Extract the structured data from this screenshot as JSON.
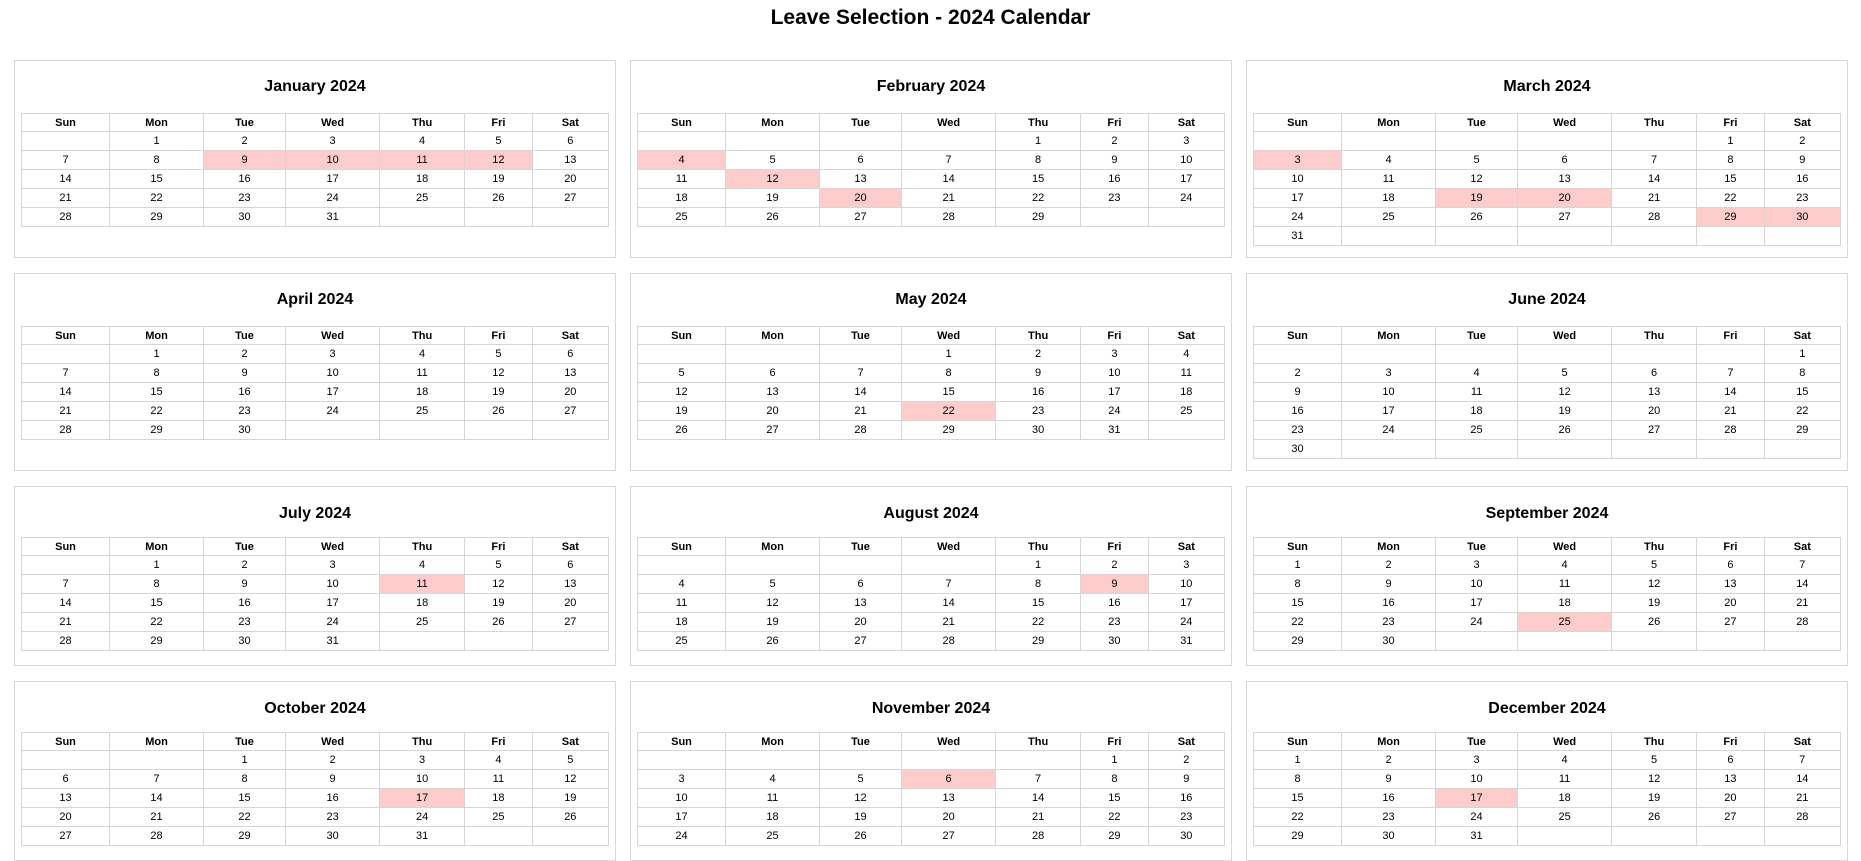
{
  "page": {
    "title": "Leave Selection - 2024 Calendar"
  },
  "weekdays": [
    "Sun",
    "Mon",
    "Tue",
    "Wed",
    "Thu",
    "Fri",
    "Sat"
  ],
  "highlight_color": "#ffcccc",
  "months": [
    {
      "title": "January 2024",
      "offset": 1,
      "days": 31,
      "leave": [
        9,
        10,
        11,
        12
      ]
    },
    {
      "title": "February 2024",
      "offset": 4,
      "days": 29,
      "leave": [
        4,
        12,
        20
      ]
    },
    {
      "title": "March 2024",
      "offset": 5,
      "days": 31,
      "leave": [
        3,
        19,
        20,
        29,
        30
      ]
    },
    {
      "title": "April 2024",
      "offset": 1,
      "days": 30,
      "leave": []
    },
    {
      "title": "May 2024",
      "offset": 3,
      "days": 31,
      "leave": [
        22
      ]
    },
    {
      "title": "June 2024",
      "offset": 6,
      "days": 30,
      "leave": []
    },
    {
      "title": "July 2024",
      "offset": 1,
      "days": 31,
      "leave": [
        11
      ]
    },
    {
      "title": "August 2024",
      "offset": 4,
      "days": 31,
      "leave": [
        9
      ]
    },
    {
      "title": "September 2024",
      "offset": 0,
      "days": 30,
      "leave": [
        25
      ]
    },
    {
      "title": "October 2024",
      "offset": 2,
      "days": 31,
      "leave": [
        17
      ]
    },
    {
      "title": "November 2024",
      "offset": 5,
      "days": 30,
      "leave": [
        6
      ]
    },
    {
      "title": "December 2024",
      "offset": 0,
      "days": 31,
      "leave": [
        17
      ]
    }
  ]
}
